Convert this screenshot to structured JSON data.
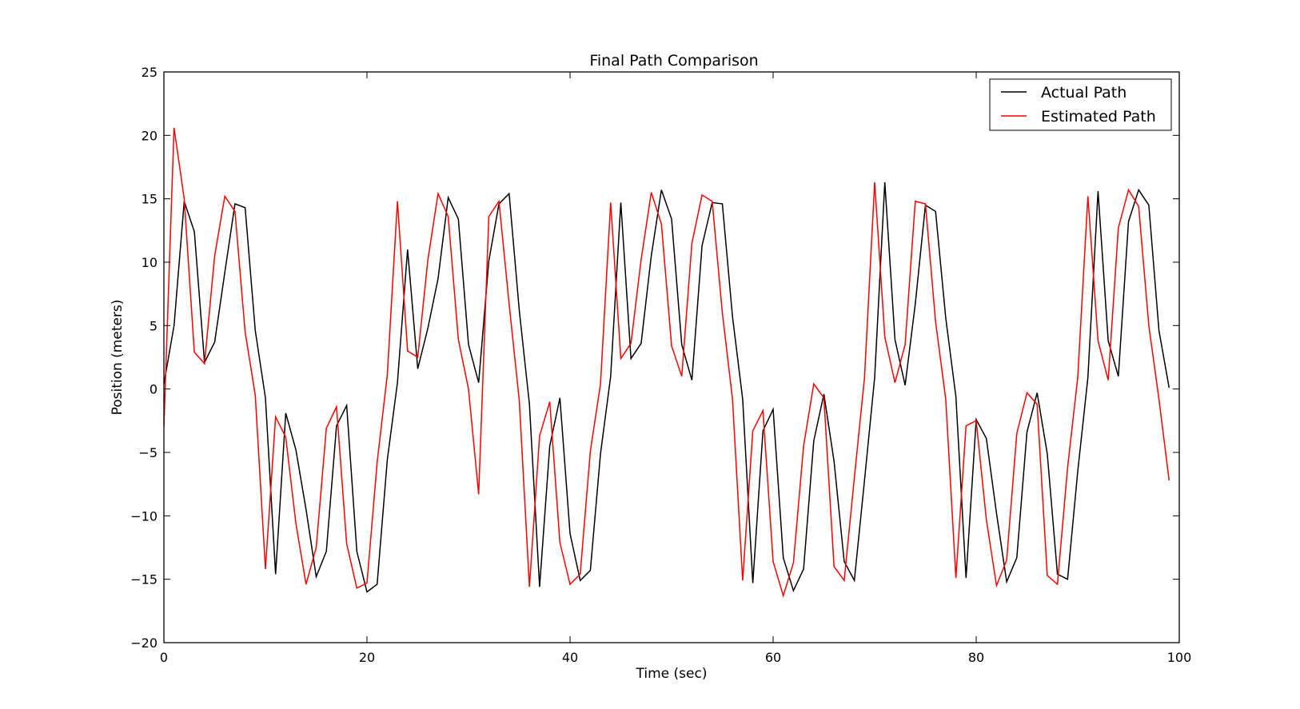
{
  "chart_data": {
    "type": "line",
    "title": "Final Path Comparison",
    "xlabel": "Time (sec)",
    "ylabel": "Position (meters)",
    "xlim": [
      0,
      100
    ],
    "ylim": [
      -20,
      25
    ],
    "xticks": [
      0,
      20,
      40,
      60,
      80,
      100
    ],
    "yticks": [
      -20,
      -15,
      -10,
      -5,
      0,
      5,
      10,
      15,
      20,
      25
    ],
    "xtick_labels": [
      "0",
      "20",
      "40",
      "60",
      "80",
      "100"
    ],
    "ytick_labels": [
      "−20",
      "−15",
      "−10",
      "−5",
      "0",
      "5",
      "10",
      "15",
      "20",
      "25"
    ],
    "grid": false,
    "legend_position": "top-right",
    "series": [
      {
        "name": "Actual Path",
        "color": "#000000",
        "x": [
          0,
          1,
          2,
          3,
          4,
          5,
          6,
          7,
          8,
          9,
          10,
          11,
          12,
          13,
          14,
          15,
          16,
          17,
          18,
          19,
          20,
          21,
          22,
          23,
          24,
          25,
          26,
          27,
          28,
          29,
          30,
          31,
          32,
          33,
          34,
          35,
          36,
          37,
          38,
          39,
          40,
          41,
          42,
          43,
          44,
          45,
          46,
          47,
          48,
          49,
          50,
          51,
          52,
          53,
          54,
          55,
          56,
          57,
          58,
          59,
          60,
          61,
          62,
          63,
          64,
          65,
          66,
          67,
          68,
          69,
          70,
          71,
          72,
          73,
          74,
          75,
          76,
          77,
          78,
          79,
          80,
          81,
          82,
          83,
          84,
          85,
          86,
          87,
          88,
          89,
          90,
          91,
          92,
          93,
          94,
          95,
          96,
          97,
          98,
          99
        ],
        "y": [
          0.4,
          5.0,
          14.8,
          12.4,
          2.1,
          3.7,
          9.2,
          14.6,
          14.3,
          4.6,
          -0.7,
          -14.6,
          -1.9,
          -4.8,
          -9.5,
          -14.8,
          -12.8,
          -2.9,
          -1.3,
          -12.8,
          -16.0,
          -15.4,
          -5.6,
          0.5,
          11.0,
          1.6,
          4.8,
          8.7,
          15.1,
          13.4,
          3.5,
          0.5,
          10.1,
          14.6,
          15.4,
          6.2,
          -1.2,
          -15.6,
          -4.5,
          -0.7,
          -11.4,
          -15.1,
          -14.3,
          -5.1,
          1.0,
          14.7,
          2.4,
          3.6,
          10.5,
          15.7,
          13.4,
          3.5,
          0.7,
          11.3,
          14.7,
          14.6,
          5.7,
          -0.8,
          -15.3,
          -3.3,
          -1.6,
          -13.3,
          -15.9,
          -14.2,
          -4.1,
          -0.4,
          -5.7,
          -13.6,
          -15.1,
          -7.2,
          0.9,
          16.3,
          3.9,
          0.3,
          6.7,
          14.5,
          14.0,
          5.6,
          -0.6,
          -14.9,
          -2.4,
          -3.9,
          -9.8,
          -15.2,
          -13.3,
          -3.4,
          -0.3,
          -5.1,
          -14.6,
          -15.0,
          -6.5,
          0.9,
          15.6,
          3.8,
          1.0,
          13.2,
          15.7,
          14.5,
          4.6,
          0.1
        ]
      },
      {
        "name": "Estimated Path",
        "color": "#ff0000",
        "x": [
          0,
          1,
          2,
          3,
          4,
          5,
          6,
          7,
          8,
          9,
          10,
          11,
          12,
          13,
          14,
          15,
          16,
          17,
          18,
          19,
          20,
          21,
          22,
          23,
          24,
          25,
          26,
          27,
          28,
          29,
          30,
          31,
          32,
          33,
          34,
          35,
          36,
          37,
          38,
          39,
          40,
          41,
          42,
          43,
          44,
          45,
          46,
          47,
          48,
          49,
          50,
          51,
          52,
          53,
          54,
          55,
          56,
          57,
          58,
          59,
          60,
          61,
          62,
          63,
          64,
          65,
          66,
          67,
          68,
          69,
          70,
          71,
          72,
          73,
          74,
          75,
          76,
          77,
          78,
          79,
          80,
          81,
          82,
          83,
          84,
          85,
          86,
          87,
          88,
          89,
          90,
          91,
          92,
          93,
          94,
          95,
          96,
          97,
          98,
          99
        ],
        "y": [
          -2.9,
          20.6,
          15.0,
          2.9,
          2.0,
          10.5,
          15.2,
          14.0,
          4.5,
          -0.5,
          -14.2,
          -2.2,
          -3.8,
          -10.6,
          -15.4,
          -12.5,
          -3.1,
          -1.4,
          -12.2,
          -15.7,
          -15.3,
          -5.8,
          1.1,
          14.8,
          3.0,
          2.5,
          10.2,
          15.4,
          13.6,
          3.9,
          0.0,
          -8.3,
          13.6,
          14.8,
          6.7,
          -0.9,
          -15.6,
          -3.7,
          -1.0,
          -12.1,
          -15.4,
          -14.6,
          -4.9,
          0.4,
          14.7,
          2.4,
          3.6,
          10.2,
          15.5,
          13.0,
          3.4,
          1.0,
          11.5,
          15.3,
          14.8,
          6.0,
          -0.8,
          -15.1,
          -3.3,
          -1.7,
          -13.6,
          -16.3,
          -13.7,
          -4.5,
          0.4,
          -0.7,
          -14.0,
          -15.1,
          -7.0,
          0.9,
          16.3,
          4.1,
          0.5,
          3.5,
          14.8,
          14.6,
          5.3,
          -0.8,
          -14.9,
          -2.9,
          -2.5,
          -10.3,
          -15.5,
          -13.5,
          -3.5,
          -0.3,
          -1.2,
          -14.7,
          -15.4,
          -6.2,
          0.9,
          15.2,
          3.8,
          0.7,
          12.7,
          15.7,
          14.4,
          5.0,
          -0.8,
          -7.2
        ]
      }
    ]
  }
}
